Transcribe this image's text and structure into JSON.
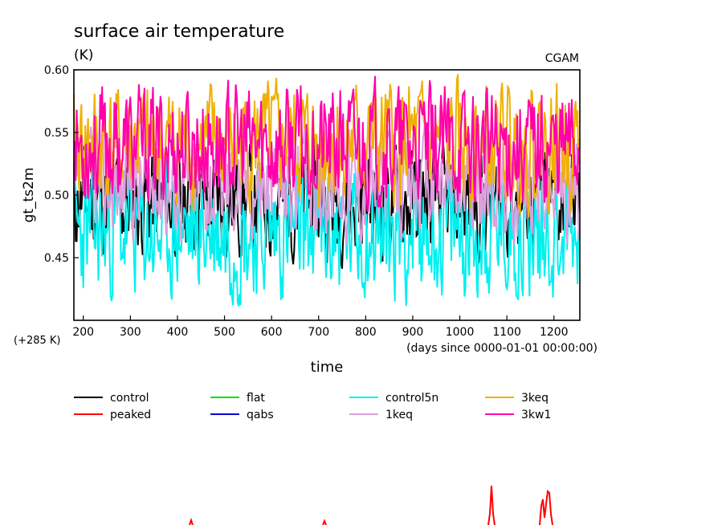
{
  "chart_data": {
    "type": "line",
    "title": "surface air temperature",
    "units": "(K)",
    "corner_label": "CGAM",
    "ylabel": "gt_ts2m",
    "xlabel": "time",
    "x_units": "(days since 0000-01-01 00:00:00)",
    "y_offset_label": "(+285 K)",
    "xlim": [
      180,
      1255
    ],
    "ylim": [
      0.4,
      0.6
    ],
    "x_ticks": [
      "200",
      "300",
      "400",
      "500",
      "600",
      "700",
      "800",
      "900",
      "1000",
      "1100",
      "1200"
    ],
    "x_tick_values": [
      200,
      300,
      400,
      500,
      600,
      700,
      800,
      900,
      1000,
      1100,
      1200
    ],
    "y_ticks": [
      "0.45",
      "0.50",
      "0.55",
      "0.60"
    ],
    "y_tick_values": [
      0.45,
      0.5,
      0.55,
      0.6
    ],
    "series": [
      {
        "name": "control",
        "color": "#000000",
        "mean": 0.495,
        "spread": 0.045,
        "seed": 11
      },
      {
        "name": "peaked",
        "color": "#ff0000",
        "mean": null,
        "spread": 0,
        "seed": 0
      },
      {
        "name": "flat",
        "color": "#00e000",
        "mean": null,
        "spread": 0,
        "seed": 0
      },
      {
        "name": "qabs",
        "color": "#0000cc",
        "mean": null,
        "spread": 0,
        "seed": 0
      },
      {
        "name": "control5n",
        "color": "#00f0f0",
        "mean": 0.47,
        "spread": 0.055,
        "seed": 23
      },
      {
        "name": "1keq",
        "color": "#dda0dd",
        "mean": 0.51,
        "spread": 0.045,
        "seed": 37
      },
      {
        "name": "3keq",
        "color": "#f0b000",
        "mean": 0.54,
        "spread": 0.05,
        "seed": 41
      },
      {
        "name": "3kw1",
        "color": "#ff00aa",
        "mean": 0.54,
        "spread": 0.048,
        "seed": 53
      }
    ],
    "legend_order": [
      "control",
      "flat",
      "control5n",
      "3keq",
      "peaked",
      "qabs",
      "1keq",
      "3kw1"
    ]
  }
}
